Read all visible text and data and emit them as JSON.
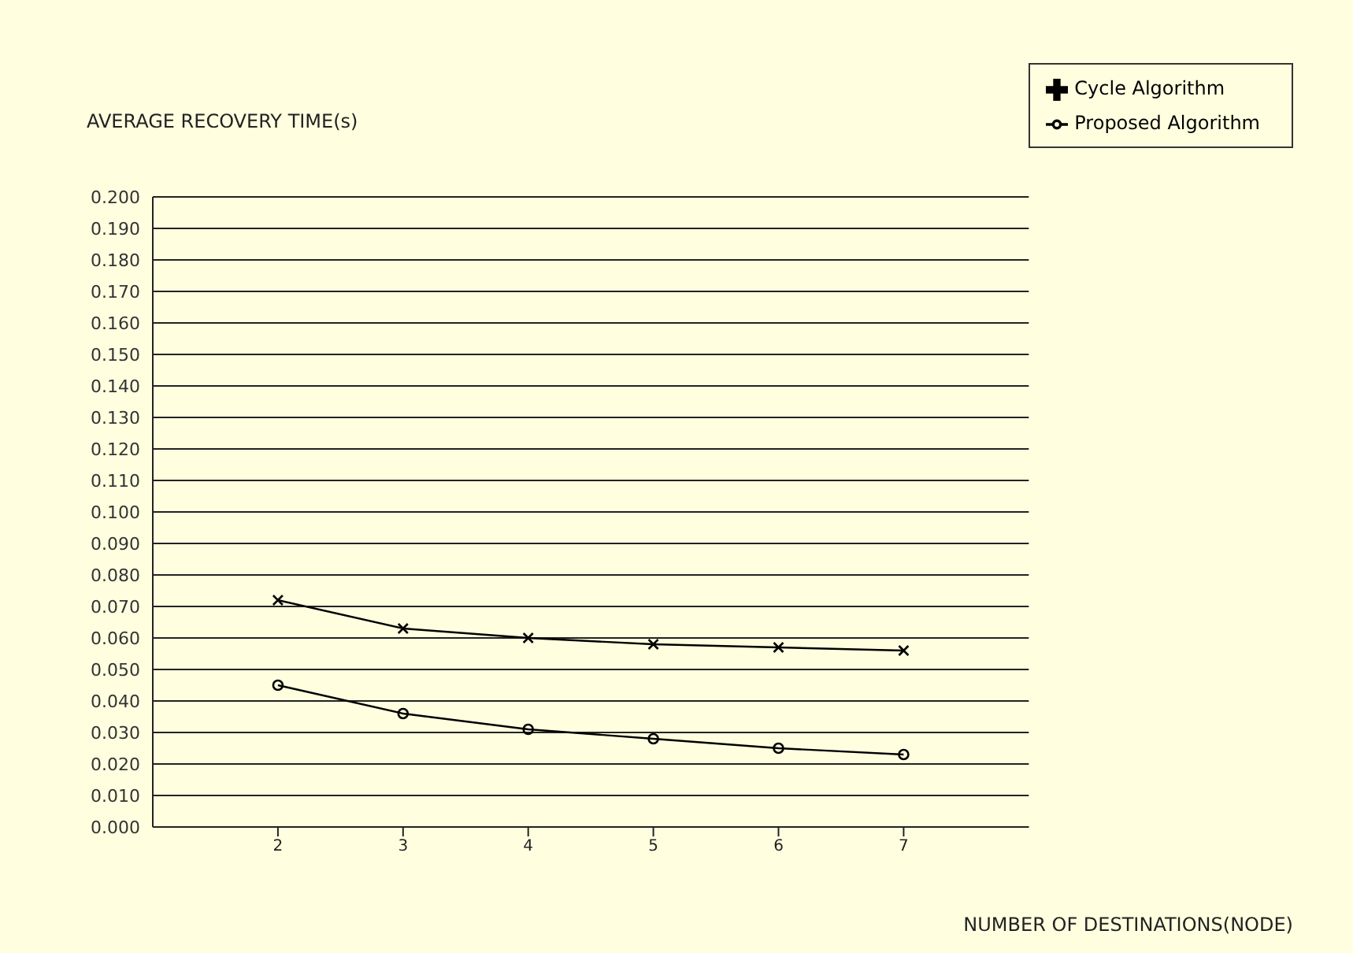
{
  "chart_data": {
    "type": "line",
    "ylabel": "AVERAGE RECOVERY TIME(s)",
    "xlabel": "NUMBER OF DESTINATIONS(NODE)",
    "x": [
      2,
      3,
      4,
      5,
      6,
      7
    ],
    "series": [
      {
        "name": "Proposed Algorithm",
        "color": "#000000",
        "marker": "circle",
        "values": [
          0.045,
          0.036,
          0.031,
          0.028,
          0.025,
          0.023
        ]
      },
      {
        "name": "Cycle Algorithm",
        "color": "#000000",
        "marker": "cross",
        "values": [
          0.072,
          0.063,
          0.06,
          0.058,
          0.057,
          0.056
        ]
      }
    ],
    "xlim": [
      1,
      8
    ],
    "xticks": [
      2,
      3,
      4,
      5,
      6,
      7
    ],
    "ylim": [
      0,
      0.2
    ],
    "yticks": [
      {
        "value": 0,
        "label": "0.000"
      },
      {
        "value": 0.01,
        "label": "0.010"
      },
      {
        "value": 0.02,
        "label": "0.020"
      },
      {
        "value": 0.03,
        "label": "0.030"
      },
      {
        "value": 0.04,
        "label": "0.040"
      },
      {
        "value": 0.05,
        "label": "0.050"
      },
      {
        "value": 0.06,
        "label": "0.060"
      },
      {
        "value": 0.07,
        "label": "0.070"
      },
      {
        "value": 0.08,
        "label": "0.080"
      },
      {
        "value": 0.09,
        "label": "0.090"
      },
      {
        "value": 0.1,
        "label": "0.100"
      },
      {
        "value": 0.11,
        "label": "0.110"
      },
      {
        "value": 0.12,
        "label": "0.120"
      },
      {
        "value": 0.13,
        "label": "0.130"
      },
      {
        "value": 0.14,
        "label": "0.140"
      },
      {
        "value": 0.15,
        "label": "0.150"
      },
      {
        "value": 0.16,
        "label": "0.160"
      },
      {
        "value": 0.17,
        "label": "0.170"
      },
      {
        "value": 0.18,
        "label": "0.180"
      },
      {
        "value": 0.19,
        "label": "0.190"
      },
      {
        "value": 0.2,
        "label": "0.200"
      }
    ],
    "grid": "y",
    "legend": "top right"
  }
}
